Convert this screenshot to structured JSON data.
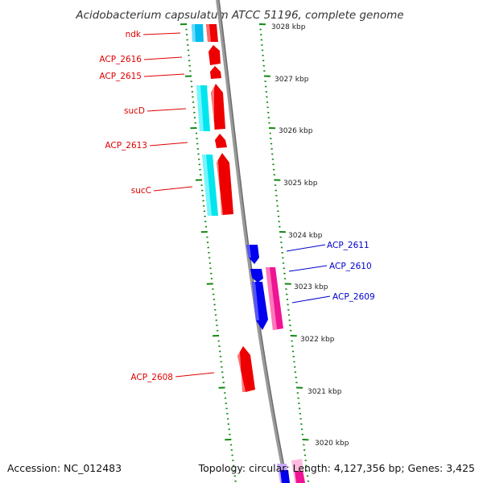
{
  "title": "Acidobacterium capsulatum ATCC 51196, complete genome",
  "footer": {
    "accession": "Accession: NC_012483",
    "summary": "Topology: circular; Length: 4,127,356 bp; Genes: 3,425"
  },
  "colors": {
    "red_gene": "#ee0000",
    "cyan_gene": "#00e5ee",
    "blue_gene": "#0000ee",
    "pink_gene": "#ee1493",
    "ticks": "#118811",
    "backbone": "#888888",
    "label_red": "#e00000",
    "label_blue": "#0000cc"
  },
  "ticks": [
    {
      "label": "3028 kbp"
    },
    {
      "label": "3027 kbp"
    },
    {
      "label": "3026 kbp"
    },
    {
      "label": "3025 kbp"
    },
    {
      "label": "3024 kbp"
    },
    {
      "label": "3023 kbp"
    },
    {
      "label": "3022 kbp"
    },
    {
      "label": "3021 kbp"
    },
    {
      "label": "3020 kbp"
    }
  ],
  "gene_labels": [
    {
      "text": "ndk",
      "side": "left",
      "color": "red"
    },
    {
      "text": "ACP_2616",
      "side": "left",
      "color": "red"
    },
    {
      "text": "ACP_2615",
      "side": "left",
      "color": "red"
    },
    {
      "text": "sucD",
      "side": "left",
      "color": "red"
    },
    {
      "text": "ACP_2613",
      "side": "left",
      "color": "red"
    },
    {
      "text": "sucC",
      "side": "left",
      "color": "red"
    },
    {
      "text": "ACP_2611",
      "side": "right",
      "color": "blue"
    },
    {
      "text": "ACP_2610",
      "side": "right",
      "color": "blue"
    },
    {
      "text": "ACP_2609",
      "side": "right",
      "color": "blue"
    },
    {
      "text": "ACP_2608",
      "side": "left",
      "color": "red"
    }
  ]
}
